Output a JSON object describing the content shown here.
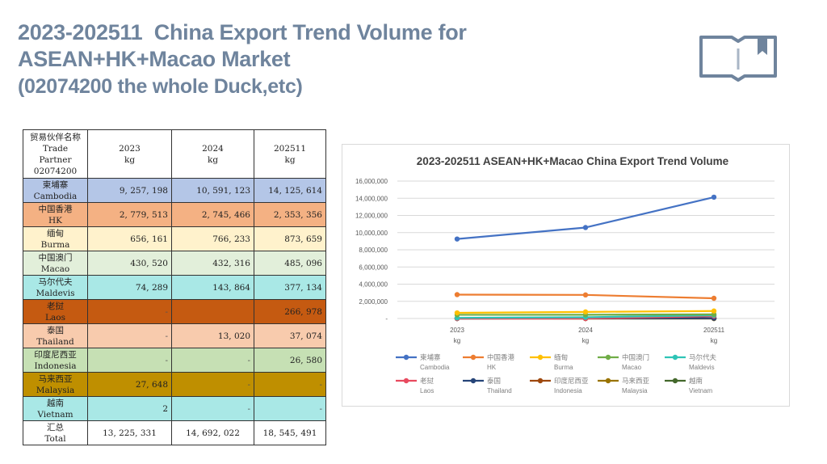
{
  "page": {
    "title_line1": "2023-202511  China Export Trend Volume for",
    "title_line2": "ASEAN+HK+Macao Market",
    "title_line3": "(02074200 the whole Duck,etc)",
    "icon": "open-book-bookmark-icon"
  },
  "table": {
    "header": {
      "partner_cn": "贸易伙伴名称",
      "partner_en1": "Trade",
      "partner_en2": "Partner",
      "partner_code": "02074200",
      "cols": [
        {
          "year": "2023",
          "unit": "kg"
        },
        {
          "year": "2024",
          "unit": "kg"
        },
        {
          "year": "202511",
          "unit": "kg"
        }
      ]
    },
    "rows": [
      {
        "cn": "柬埔寨",
        "en": "Cambodia",
        "v": [
          "9, 257, 198",
          "10, 591, 123",
          "14, 125, 614"
        ],
        "color": "#b4c6e7"
      },
      {
        "cn": "中国香港",
        "en": "HK",
        "v": [
          "2, 779, 513",
          "2, 745, 466",
          "2, 353, 356"
        ],
        "color": "#f4b183"
      },
      {
        "cn": "缅甸",
        "en": "Burma",
        "v": [
          "656, 161",
          "766, 233",
          "873, 659"
        ],
        "color": "#fff2cc"
      },
      {
        "cn": "中国澳门",
        "en": "Macao",
        "v": [
          "430, 520",
          "432, 316",
          "485, 096"
        ],
        "color": "#e2efda"
      },
      {
        "cn": "马尔代夫",
        "en": "Maldevis",
        "v": [
          "74, 289",
          "143, 864",
          "377, 134"
        ],
        "color": "#a9e8e6"
      },
      {
        "cn": "老挝",
        "en": "Laos",
        "v": [
          "-",
          "",
          "266, 978"
        ],
        "color": "#c55a11"
      },
      {
        "cn": "泰国",
        "en": "Thailand",
        "v": [
          "-",
          "13, 020",
          "37, 074"
        ],
        "color": "#f8cbad"
      },
      {
        "cn": "印度尼西亚",
        "en": "Indonesia",
        "v": [
          "-",
          "-",
          "26, 580"
        ],
        "color": "#c6e0b4"
      },
      {
        "cn": "马来西亚",
        "en": "Malaysia",
        "v": [
          "27, 648",
          "-",
          "-"
        ],
        "color": "#bf8f00"
      },
      {
        "cn": "越南",
        "en": "Vietnam",
        "v": [
          "2",
          "-",
          "-"
        ],
        "color": "#a9e8e6"
      }
    ],
    "total": {
      "cn": "汇总",
      "en": "Total",
      "v": [
        "13, 225, 331",
        "14, 692, 022",
        "18, 545, 491"
      ]
    }
  },
  "chart_data": {
    "type": "line",
    "title": "2023-202511 ASEAN+HK+Macao China Export Trend Volume",
    "categories": [
      {
        "line1": "2023",
        "line2": "kg"
      },
      {
        "line1": "2024",
        "line2": "kg"
      },
      {
        "line1": "202511",
        "line2": "kg"
      }
    ],
    "ylim": [
      0,
      16000000
    ],
    "yticks": [
      {
        "value": 0,
        "label": "-"
      },
      {
        "value": 2000000,
        "label": "2,000,000"
      },
      {
        "value": 4000000,
        "label": "4,000,000"
      },
      {
        "value": 6000000,
        "label": "6,000,000"
      },
      {
        "value": 8000000,
        "label": "8,000,000"
      },
      {
        "value": 10000000,
        "label": "10,000,000"
      },
      {
        "value": 12000000,
        "label": "12,000,000"
      },
      {
        "value": 14000000,
        "label": "14,000,000"
      },
      {
        "value": 16000000,
        "label": "16,000,000"
      }
    ],
    "grid": true,
    "legend": "bottom",
    "series": [
      {
        "name_cn": "柬埔寨",
        "name_en": "Cambodia",
        "color": "#4472c4",
        "values": [
          9257198,
          10591123,
          14125614
        ]
      },
      {
        "name_cn": "中国香港",
        "name_en": "HK",
        "color": "#ed7d31",
        "values": [
          2779513,
          2745466,
          2353356
        ]
      },
      {
        "name_cn": "缅甸",
        "name_en": "Burma",
        "color": "#ffc000",
        "values": [
          656161,
          766233,
          873659
        ]
      },
      {
        "name_cn": "中国澳门",
        "name_en": "Macao",
        "color": "#70ad47",
        "values": [
          430520,
          432316,
          485096
        ]
      },
      {
        "name_cn": "马尔代夫",
        "name_en": "Maldevis",
        "color": "#2ec4b6",
        "values": [
          74289,
          143864,
          377134
        ]
      },
      {
        "name_cn": "老挝",
        "name_en": "Laos",
        "color": "#e84a5f",
        "values": [
          0,
          0,
          266978
        ]
      },
      {
        "name_cn": "泰国",
        "name_en": "Thailand",
        "color": "#264478",
        "values": [
          0,
          13020,
          37074
        ]
      },
      {
        "name_cn": "印度尼西亚",
        "name_en": "Indonesia",
        "color": "#9e480e",
        "values": [
          0,
          0,
          26580
        ]
      },
      {
        "name_cn": "马来西亚",
        "name_en": "Malaysia",
        "color": "#997300",
        "values": [
          27648,
          0,
          0
        ]
      },
      {
        "name_cn": "越南",
        "name_en": "Vietnam",
        "color": "#43682b",
        "values": [
          2,
          0,
          0
        ]
      }
    ]
  }
}
